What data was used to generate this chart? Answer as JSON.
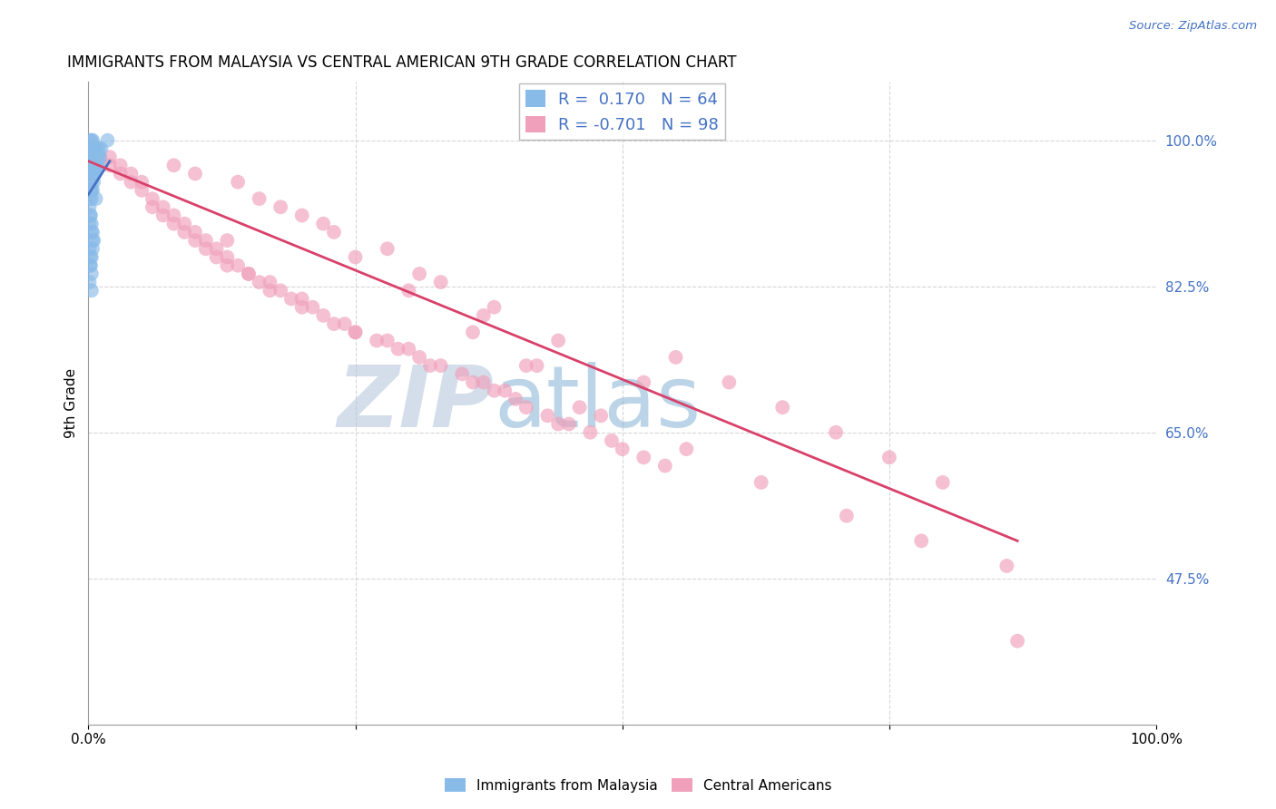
{
  "title": "IMMIGRANTS FROM MALAYSIA VS CENTRAL AMERICAN 9TH GRADE CORRELATION CHART",
  "source": "Source: ZipAtlas.com",
  "ylabel": "9th Grade",
  "xlim": [
    0.0,
    1.0
  ],
  "ylim": [
    0.3,
    1.07
  ],
  "x_ticks": [
    0.0,
    0.25,
    0.5,
    0.75,
    1.0
  ],
  "x_tick_labels": [
    "0.0%",
    "",
    "",
    "",
    "100.0%"
  ],
  "y_tick_labels_right": [
    "47.5%",
    "65.0%",
    "82.5%",
    "100.0%"
  ],
  "y_ticks_right": [
    0.475,
    0.65,
    0.825,
    1.0
  ],
  "legend_r_blue": "0.170",
  "legend_n_blue": "64",
  "legend_r_pink": "-0.701",
  "legend_n_pink": "98",
  "blue_color": "#89BBE8",
  "pink_color": "#F0A0BA",
  "trend_blue": "#4472C4",
  "trend_pink": "#D9406A",
  "watermark": "ZIPatlas",
  "watermark_color": "#C8D8EF",
  "grid_color": "#CCCCCC",
  "background_color": "#FFFFFF",
  "malaysia_x": [
    0.001,
    0.001,
    0.001,
    0.001,
    0.002,
    0.002,
    0.002,
    0.002,
    0.002,
    0.002,
    0.003,
    0.003,
    0.003,
    0.003,
    0.003,
    0.003,
    0.003,
    0.004,
    0.004,
    0.004,
    0.004,
    0.004,
    0.005,
    0.005,
    0.005,
    0.005,
    0.006,
    0.006,
    0.006,
    0.007,
    0.007,
    0.008,
    0.008,
    0.009,
    0.01,
    0.01,
    0.011,
    0.012,
    0.001,
    0.001,
    0.002,
    0.002,
    0.003,
    0.003,
    0.004,
    0.004,
    0.005,
    0.005,
    0.006,
    0.007,
    0.001,
    0.002,
    0.002,
    0.003,
    0.003,
    0.004,
    0.001,
    0.002,
    0.003,
    0.004,
    0.001,
    0.002,
    0.003,
    0.018
  ],
  "malaysia_y": [
    0.99,
    0.98,
    0.97,
    0.96,
    1.0,
    0.99,
    0.98,
    0.97,
    0.96,
    0.95,
    1.0,
    0.99,
    0.98,
    0.97,
    0.96,
    0.95,
    0.94,
    1.0,
    0.99,
    0.98,
    0.97,
    0.96,
    0.99,
    0.98,
    0.97,
    0.96,
    0.99,
    0.98,
    0.96,
    0.98,
    0.97,
    0.99,
    0.97,
    0.98,
    0.99,
    0.97,
    0.98,
    0.99,
    0.93,
    0.92,
    0.94,
    0.91,
    0.93,
    0.9,
    0.94,
    0.89,
    0.95,
    0.88,
    0.96,
    0.93,
    0.87,
    0.86,
    0.85,
    0.86,
    0.84,
    0.87,
    0.83,
    0.85,
    0.82,
    0.88,
    0.9,
    0.91,
    0.89,
    1.0
  ],
  "central_x": [
    0.01,
    0.02,
    0.02,
    0.03,
    0.03,
    0.04,
    0.04,
    0.05,
    0.05,
    0.06,
    0.06,
    0.07,
    0.07,
    0.08,
    0.08,
    0.09,
    0.09,
    0.1,
    0.1,
    0.11,
    0.11,
    0.12,
    0.12,
    0.13,
    0.13,
    0.14,
    0.15,
    0.15,
    0.16,
    0.17,
    0.17,
    0.18,
    0.19,
    0.2,
    0.2,
    0.21,
    0.22,
    0.23,
    0.24,
    0.25,
    0.25,
    0.27,
    0.28,
    0.29,
    0.3,
    0.31,
    0.32,
    0.33,
    0.35,
    0.36,
    0.37,
    0.38,
    0.39,
    0.4,
    0.41,
    0.43,
    0.44,
    0.45,
    0.47,
    0.49,
    0.5,
    0.52,
    0.54,
    0.37,
    0.42,
    0.28,
    0.33,
    0.22,
    0.18,
    0.25,
    0.3,
    0.36,
    0.41,
    0.46,
    0.55,
    0.6,
    0.65,
    0.7,
    0.75,
    0.8,
    0.14,
    0.2,
    0.38,
    0.44,
    0.52,
    0.1,
    0.08,
    0.16,
    0.23,
    0.31,
    0.48,
    0.56,
    0.63,
    0.71,
    0.78,
    0.86,
    0.13,
    0.87
  ],
  "central_y": [
    0.98,
    0.98,
    0.97,
    0.97,
    0.96,
    0.96,
    0.95,
    0.95,
    0.94,
    0.93,
    0.92,
    0.92,
    0.91,
    0.91,
    0.9,
    0.9,
    0.89,
    0.89,
    0.88,
    0.88,
    0.87,
    0.87,
    0.86,
    0.86,
    0.85,
    0.85,
    0.84,
    0.84,
    0.83,
    0.83,
    0.82,
    0.82,
    0.81,
    0.81,
    0.8,
    0.8,
    0.79,
    0.78,
    0.78,
    0.77,
    0.77,
    0.76,
    0.76,
    0.75,
    0.75,
    0.74,
    0.73,
    0.73,
    0.72,
    0.71,
    0.71,
    0.7,
    0.7,
    0.69,
    0.68,
    0.67,
    0.66,
    0.66,
    0.65,
    0.64,
    0.63,
    0.62,
    0.61,
    0.79,
    0.73,
    0.87,
    0.83,
    0.9,
    0.92,
    0.86,
    0.82,
    0.77,
    0.73,
    0.68,
    0.74,
    0.71,
    0.68,
    0.65,
    0.62,
    0.59,
    0.95,
    0.91,
    0.8,
    0.76,
    0.71,
    0.96,
    0.97,
    0.93,
    0.89,
    0.84,
    0.67,
    0.63,
    0.59,
    0.55,
    0.52,
    0.49,
    0.88,
    0.4
  ],
  "blue_trend_x": [
    0.0,
    0.02
  ],
  "blue_trend_y_start": 0.935,
  "blue_trend_y_end": 0.975,
  "pink_trend_x_start": 0.0,
  "pink_trend_x_end": 0.87,
  "pink_trend_y_start": 0.975,
  "pink_trend_y_end": 0.52
}
